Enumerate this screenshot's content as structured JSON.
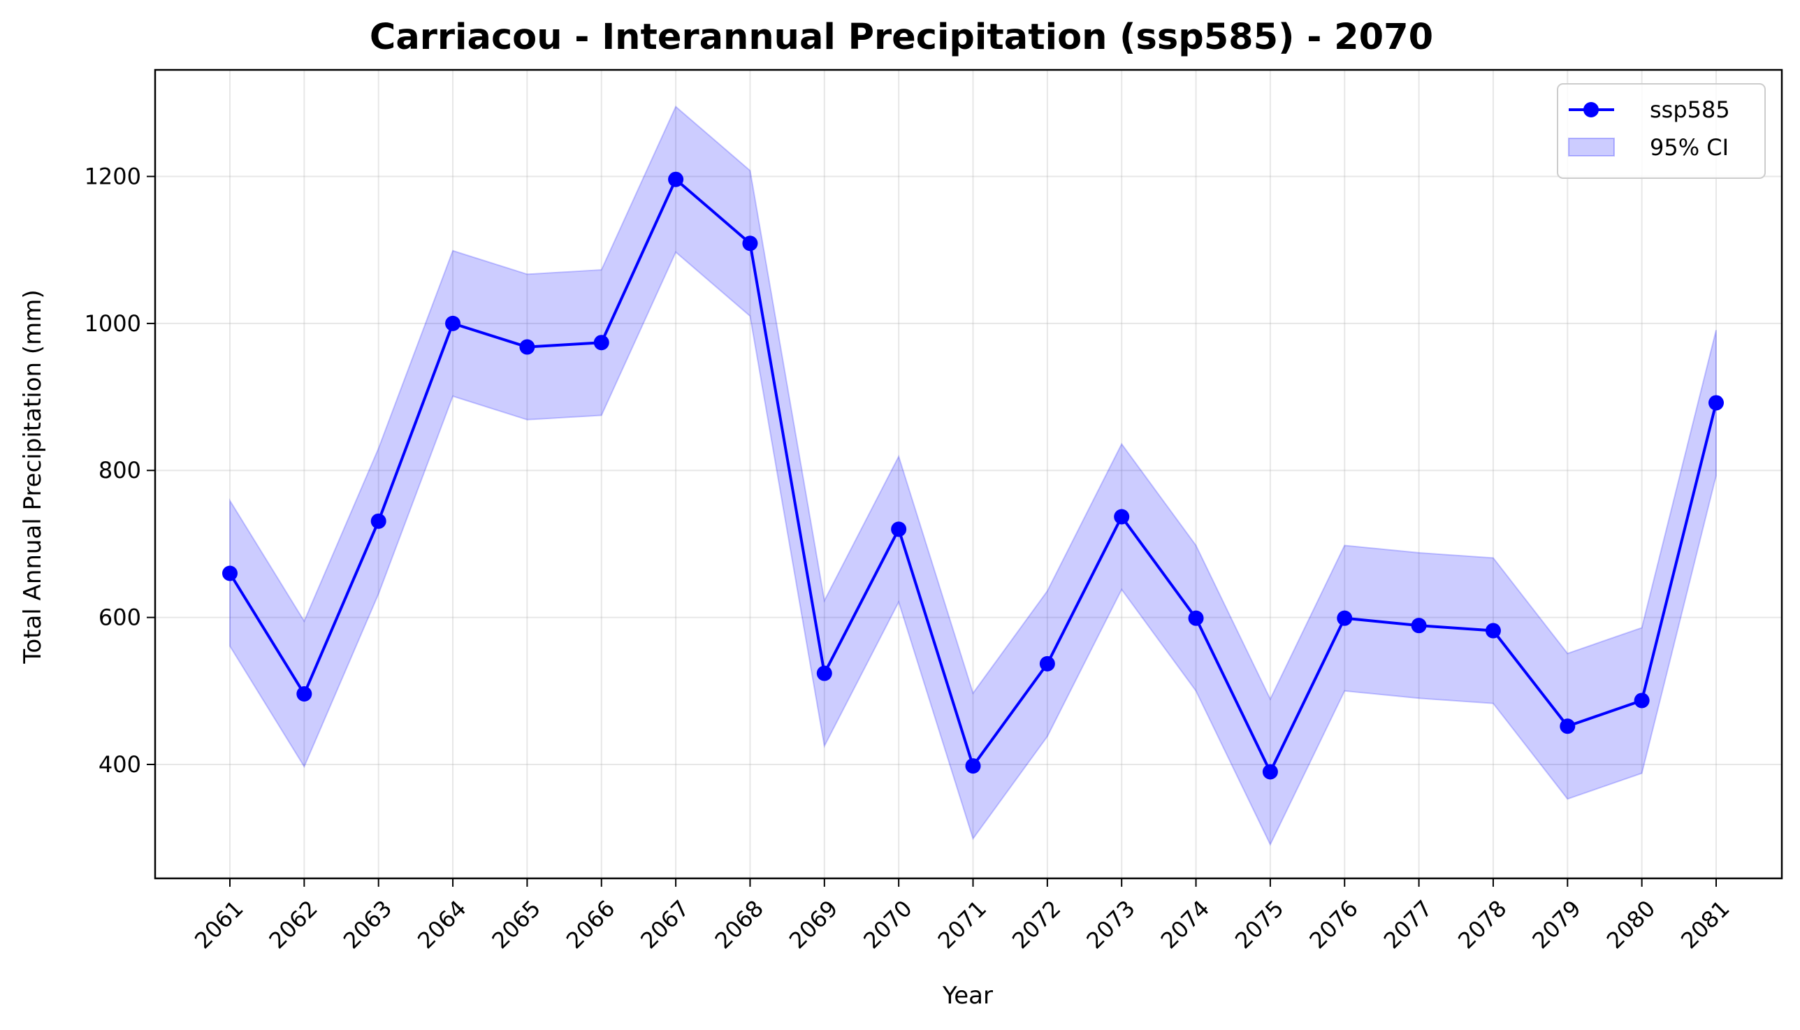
{
  "chart_data": {
    "type": "line",
    "title": "Carriacou - Interannual Precipitation (ssp585) - 2070",
    "xlabel": "Year",
    "ylabel": "Total Annual Precipitation (mm)",
    "categories": [
      "2061",
      "2062",
      "2063",
      "2064",
      "2065",
      "2066",
      "2067",
      "2068",
      "2069",
      "2070",
      "2071",
      "2072",
      "2073",
      "2074",
      "2075",
      "2076",
      "2077",
      "2078",
      "2079",
      "2080",
      "2081"
    ],
    "series": [
      {
        "name": "ssp585",
        "color": "#0000ff",
        "values": [
          660,
          496,
          731,
          1000,
          968,
          974,
          1196,
          1109,
          524,
          720,
          398,
          537,
          737,
          599,
          390,
          599,
          589,
          582,
          452,
          487,
          892
        ]
      }
    ],
    "ci": {
      "name": "95% CI",
      "color": "#0000ff",
      "lower": [
        561,
        397,
        632,
        901,
        869,
        875,
        1097,
        1010,
        425,
        621,
        299,
        438,
        638,
        500,
        291,
        500,
        490,
        483,
        353,
        388,
        793
      ],
      "upper": [
        759,
        595,
        830,
        1099,
        1067,
        1073,
        1295,
        1208,
        623,
        819,
        497,
        636,
        836,
        698,
        489,
        698,
        688,
        681,
        551,
        586,
        991
      ]
    },
    "yticks": [
      400,
      600,
      800,
      1000,
      1200
    ],
    "ylim": [
      245,
      1345
    ],
    "grid": true,
    "legend_position": "top-right"
  }
}
